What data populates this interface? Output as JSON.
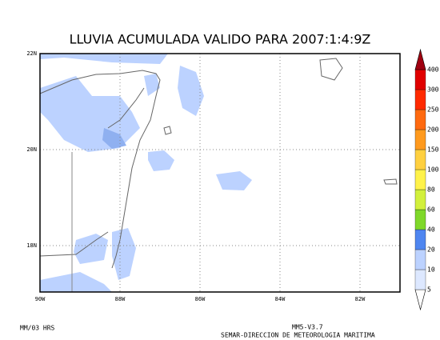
{
  "title": "LLUVIA ACUMULADA VALIDO PARA 2007:1:4:9Z",
  "lat_ticks": [
    {
      "value": 22,
      "label": "22N"
    },
    {
      "value": 20,
      "label": "20N"
    },
    {
      "value": 18,
      "label": "18N"
    }
  ],
  "lon_ticks": [
    {
      "value": -90,
      "label": "90W"
    },
    {
      "value": -88,
      "label": "88W"
    },
    {
      "value": -86,
      "label": "86W"
    },
    {
      "value": -84,
      "label": "84W"
    },
    {
      "value": -82,
      "label": "82W"
    }
  ],
  "colorbar": {
    "levels": [
      5,
      10,
      20,
      40,
      60,
      80,
      100,
      150,
      200,
      250,
      300,
      400
    ],
    "colors": [
      "#ffffff",
      "#dde8ff",
      "#bcd2ff",
      "#4f86f0",
      "#7fd82a",
      "#d2f03c",
      "#fff24a",
      "#ffd040",
      "#ff9a1e",
      "#ff6a10",
      "#ff2a00",
      "#e00000",
      "#a00010"
    ]
  },
  "footer": {
    "left": "MM/03 HRS",
    "model": "MM5-V3.7",
    "agency": "SEMAR-DIRECCION DE METEOROLOGIA MARITIMA"
  }
}
